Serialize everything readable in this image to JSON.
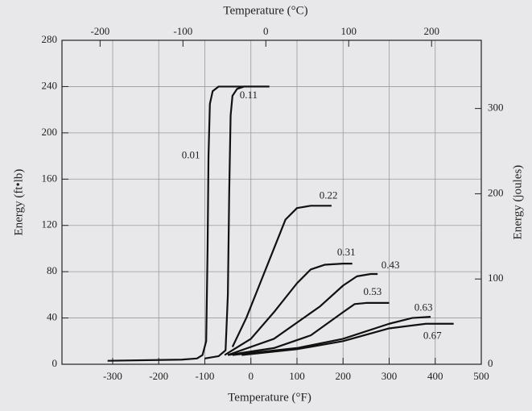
{
  "chart_data": {
    "type": "line",
    "title": "Temperature (°C)",
    "x_label": "Temperature (°F)",
    "y_label": "Energy (ft•lb)",
    "y2_label": "Energy (joules)",
    "xlim": [
      -410,
      500
    ],
    "xticks": [
      -300,
      -200,
      -100,
      0,
      100,
      200,
      300,
      400,
      500
    ],
    "x2lim": [
      -246,
      260
    ],
    "x2ticks": [
      -200,
      -100,
      0,
      100,
      200
    ],
    "ylim": [
      0,
      280
    ],
    "yticks": [
      0,
      40,
      80,
      120,
      160,
      200,
      240,
      280
    ],
    "y2lim": [
      0,
      380
    ],
    "y2ticks": [
      0,
      100,
      200,
      300
    ],
    "grid": true,
    "series": [
      {
        "name": "0.01",
        "color": "#111111",
        "x": [
          -311,
          -150,
          -117,
          -105,
          -97,
          -94,
          -92,
          -89,
          -83,
          -70,
          0,
          40
        ],
        "values": [
          3,
          4,
          5,
          8,
          20,
          100,
          180,
          225,
          236,
          240,
          240,
          240
        ]
      },
      {
        "name": "0.11",
        "color": "#111111",
        "x": [
          -100,
          -70,
          -55,
          -50,
          -47,
          -44,
          -40,
          -30,
          -15,
          40
        ],
        "values": [
          5,
          7,
          12,
          60,
          150,
          215,
          232,
          238,
          240,
          240
        ]
      },
      {
        "name": "0.22",
        "color": "#111111",
        "x": [
          -40,
          -10,
          20,
          50,
          75,
          100,
          130,
          175
        ],
        "values": [
          15,
          40,
          70,
          100,
          125,
          135,
          137,
          137
        ]
      },
      {
        "name": "0.31",
        "color": "#111111",
        "x": [
          -57,
          0,
          50,
          100,
          130,
          160,
          200,
          220
        ],
        "values": [
          8,
          22,
          45,
          70,
          82,
          86,
          87,
          87
        ]
      },
      {
        "name": "0.43",
        "color": "#111111",
        "x": [
          -50,
          50,
          150,
          200,
          230,
          260,
          275
        ],
        "values": [
          8,
          22,
          50,
          68,
          76,
          78,
          78
        ]
      },
      {
        "name": "0.53",
        "color": "#111111",
        "x": [
          -50,
          50,
          130,
          200,
          225,
          250,
          300
        ],
        "values": [
          8,
          14,
          25,
          45,
          52,
          53,
          53
        ]
      },
      {
        "name": "0.63",
        "color": "#111111",
        "x": [
          -40,
          100,
          200,
          300,
          350,
          390
        ],
        "values": [
          8,
          14,
          22,
          35,
          40,
          41
        ]
      },
      {
        "name": "0.67",
        "color": "#111111",
        "x": [
          -20,
          100,
          200,
          300,
          380,
          440
        ],
        "values": [
          8,
          13,
          20,
          31,
          35,
          35
        ]
      }
    ]
  }
}
